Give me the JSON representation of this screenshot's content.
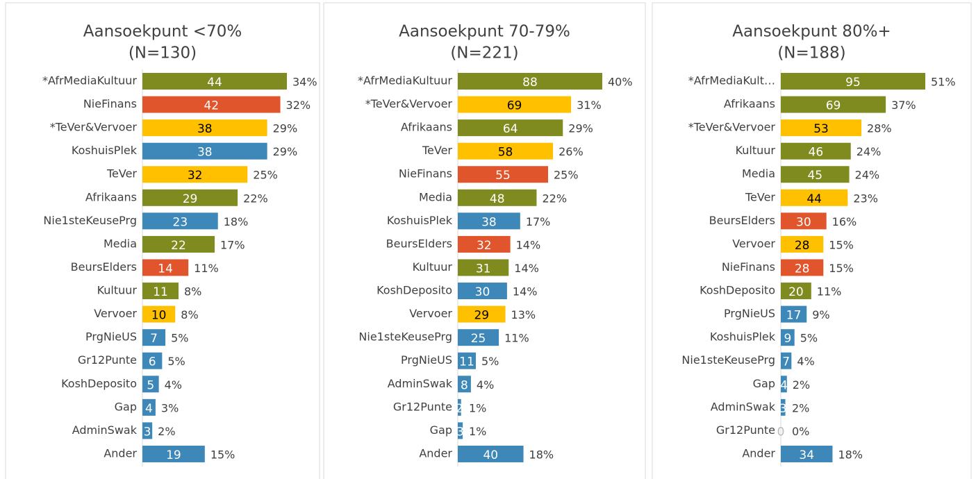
{
  "chart_data": [
    {
      "type": "bar",
      "orientation": "horizontal",
      "title": "Aansoekpunt <70%",
      "subtitle": "(N=130)",
      "categories": [
        "*AfrMediaKultuur",
        "NieFinans",
        "*TeVer&Vervoer",
        "KoshuisPlek",
        "TeVer",
        "Afrikaans",
        "Nie1steKeusePrg",
        "Media",
        "BeursElders",
        "Kultuur",
        "Vervoer",
        "PrgNieUS",
        "Gr12Punte",
        "KoshDeposito",
        "Gap",
        "AdminSwak",
        "Ander"
      ],
      "values": [
        44,
        42,
        38,
        38,
        32,
        29,
        23,
        22,
        14,
        11,
        10,
        7,
        6,
        5,
        4,
        3,
        19
      ],
      "percent_values": [
        34,
        32,
        29,
        29,
        25,
        22,
        18,
        17,
        11,
        8,
        8,
        5,
        5,
        4,
        3,
        2,
        15
      ],
      "percent_labels": [
        "34%",
        "32%",
        "29%",
        "29%",
        "25%",
        "22%",
        "18%",
        "17%",
        "11%",
        "8%",
        "8%",
        "5%",
        "5%",
        "4%",
        "3%",
        "2%",
        "15%"
      ],
      "colors": [
        "#7f8b1f",
        "#e0552b",
        "#ffc000",
        "#3d88b8",
        "#ffc000",
        "#7f8b1f",
        "#3d88b8",
        "#7f8b1f",
        "#e0552b",
        "#7f8b1f",
        "#ffc000",
        "#3d88b8",
        "#3d88b8",
        "#3d88b8",
        "#3d88b8",
        "#3d88b8",
        "#3d88b8"
      ],
      "xlim": [
        0,
        44
      ]
    },
    {
      "type": "bar",
      "orientation": "horizontal",
      "title": "Aansoekpunt 70-79%",
      "subtitle": "(N=221)",
      "categories": [
        "*AfrMediaKultuur",
        "*TeVer&Vervoer",
        "Afrikaans",
        "TeVer",
        "NieFinans",
        "Media",
        "KoshuisPlek",
        "BeursElders",
        "Kultuur",
        "KoshDeposito",
        "Vervoer",
        "Nie1steKeusePrg",
        "PrgNieUS",
        "AdminSwak",
        "Gr12Punte",
        "Gap",
        "Ander"
      ],
      "values": [
        88,
        69,
        64,
        58,
        55,
        48,
        38,
        32,
        31,
        30,
        29,
        25,
        11,
        8,
        2,
        3,
        40
      ],
      "percent_values": [
        40,
        31,
        29,
        26,
        25,
        22,
        17,
        14,
        14,
        14,
        13,
        11,
        5,
        4,
        1,
        1,
        18
      ],
      "percent_labels": [
        "40%",
        "31%",
        "29%",
        "26%",
        "25%",
        "22%",
        "17%",
        "14%",
        "14%",
        "14%",
        "13%",
        "11%",
        "5%",
        "4%",
        "1%",
        "1%",
        "18%"
      ],
      "colors": [
        "#7f8b1f",
        "#ffc000",
        "#7f8b1f",
        "#ffc000",
        "#e0552b",
        "#7f8b1f",
        "#3d88b8",
        "#e0552b",
        "#7f8b1f",
        "#3d88b8",
        "#ffc000",
        "#3d88b8",
        "#3d88b8",
        "#3d88b8",
        "#3d88b8",
        "#3d88b8",
        "#3d88b8"
      ],
      "xlim": [
        0,
        88
      ]
    },
    {
      "type": "bar",
      "orientation": "horizontal",
      "title": "Aansoekpunt 80%+",
      "subtitle": "(N=188)",
      "categories": [
        "*AfrMediaKult…",
        "Afrikaans",
        "*TeVer&Vervoer",
        "Kultuur",
        "Media",
        "TeVer",
        "BeursElders",
        "Vervoer",
        "NieFinans",
        "KoshDeposito",
        "PrgNieUS",
        "KoshuisPlek",
        "Nie1steKeusePrg",
        "Gap",
        "AdminSwak",
        "Gr12Punte",
        "Ander"
      ],
      "values": [
        95,
        69,
        53,
        46,
        45,
        44,
        30,
        28,
        28,
        20,
        17,
        9,
        7,
        4,
        3,
        0,
        34
      ],
      "percent_values": [
        51,
        37,
        28,
        24,
        24,
        23,
        16,
        15,
        15,
        11,
        9,
        5,
        4,
        2,
        2,
        0,
        18
      ],
      "percent_labels": [
        "51%",
        "37%",
        "28%",
        "24%",
        "24%",
        "23%",
        "16%",
        "15%",
        "15%",
        "11%",
        "9%",
        "5%",
        "4%",
        "2%",
        "2%",
        "0%",
        "18%"
      ],
      "colors": [
        "#7f8b1f",
        "#7f8b1f",
        "#ffc000",
        "#7f8b1f",
        "#7f8b1f",
        "#ffc000",
        "#e0552b",
        "#ffc000",
        "#e0552b",
        "#7f8b1f",
        "#3d88b8",
        "#3d88b8",
        "#3d88b8",
        "#3d88b8",
        "#3d88b8",
        "#3d88b8",
        "#3d88b8"
      ],
      "xlim": [
        0,
        95
      ]
    }
  ]
}
